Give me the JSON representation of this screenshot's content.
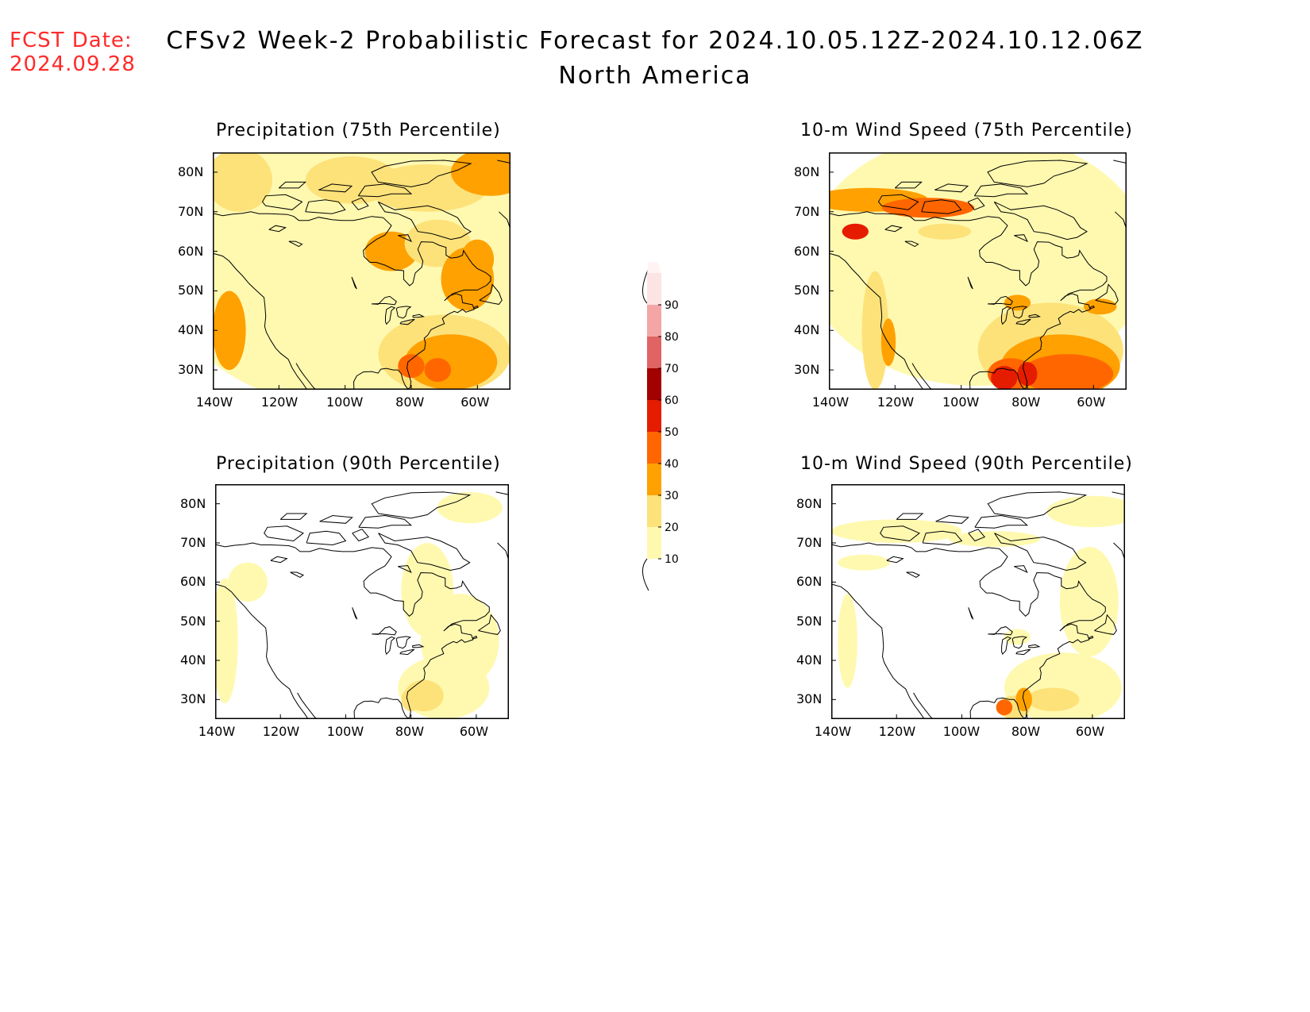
{
  "header": {
    "fcst_label": "FCST Date:",
    "fcst_date": "2024.09.28",
    "title_line1": "CFSv2 Week-2 Probabilistic Forecast for 2024.10.05.12Z-2024.10.12.06Z",
    "title_line2": "North America"
  },
  "panels": [
    {
      "id": "precip75",
      "title": "Precipitation (75th Percentile)"
    },
    {
      "id": "wind75",
      "title": "10-m Wind Speed (75th Percentile)"
    },
    {
      "id": "precip90",
      "title": "Precipitation (90th Percentile)"
    },
    {
      "id": "wind90",
      "title": "10-m Wind Speed (90th Percentile)"
    }
  ],
  "axes": {
    "lat_labels": [
      "80N",
      "70N",
      "60N",
      "50N",
      "40N",
      "30N"
    ],
    "lon_labels": [
      "140W",
      "120W",
      "100W",
      "80W",
      "60W"
    ]
  },
  "colorbar": {
    "levels": [
      "10",
      "20",
      "30",
      "40",
      "50",
      "60",
      "70",
      "80",
      "90"
    ],
    "colors": [
      "#fff9b0",
      "#fde27a",
      "#ffa100",
      "#ff6600",
      "#e61c00",
      "#a30000",
      "#e06464",
      "#f4a6a6",
      "#fde4e4"
    ]
  },
  "chart_data": {
    "type": "heatmap",
    "region": "North America",
    "lat_range": [
      25,
      85
    ],
    "lon_range": [
      -140,
      -50
    ],
    "probability_levels_percent": [
      10,
      20,
      30,
      40,
      50,
      60,
      70,
      80,
      90
    ]
  }
}
